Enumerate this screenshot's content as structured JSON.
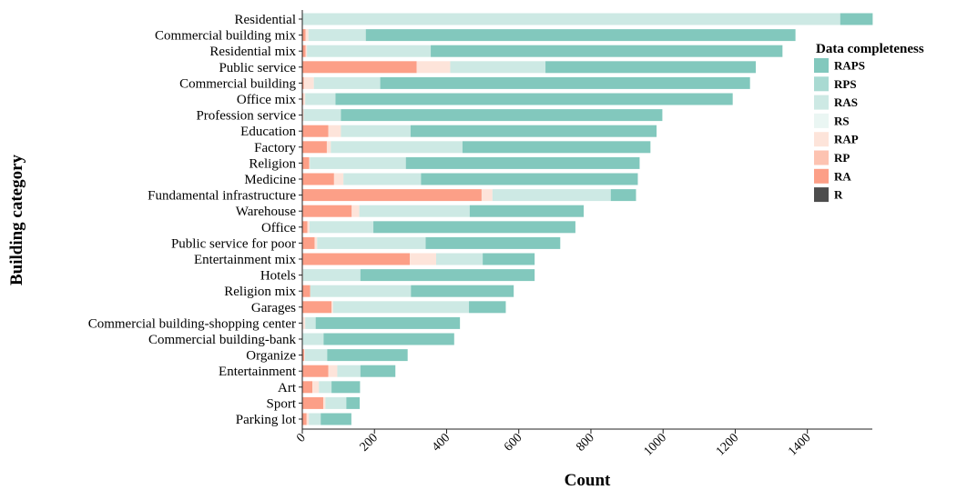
{
  "chart_data": {
    "type": "bar",
    "orientation": "horizontal",
    "stacked": true,
    "xlabel": "Count",
    "ylabel": "Building category",
    "xlim": [
      0,
      1580
    ],
    "xticks": [
      0,
      200,
      400,
      600,
      800,
      1000,
      1200,
      1400
    ],
    "grid": false,
    "legend": {
      "title": "Data completeness",
      "position": "right"
    },
    "categories": [
      "Residential",
      "Commercial building mix",
      "Residential mix",
      "Public service",
      "Commercial building",
      "Office mix",
      "Profession service",
      "Education",
      "Factory",
      "Religion",
      "Medicine",
      "Fundamental infrastructure",
      "Warehouse",
      "Office",
      "Public service for poor",
      "Entertainment mix",
      "Hotels",
      "Religion mix",
      "Garages",
      "Commercial building-shopping center",
      "Commercial building-bank",
      "Organize",
      "Entertainment",
      "Art",
      "Sport",
      "Parking lot"
    ],
    "series": [
      {
        "name": "R",
        "color": "#4d4d4d",
        "values": [
          0,
          0,
          0,
          0,
          0,
          0,
          0,
          0,
          0,
          0,
          0,
          0,
          0,
          0,
          0,
          0,
          0,
          0,
          0,
          0,
          0,
          0,
          0,
          0,
          0,
          0
        ]
      },
      {
        "name": "RA",
        "color": "#fc9f87",
        "values": [
          0,
          9,
          9,
          317,
          4,
          3,
          2,
          72,
          68,
          19,
          88,
          497,
          137,
          14,
          34,
          298,
          1,
          22,
          81,
          1,
          1,
          5,
          72,
          28,
          58,
          12
        ]
      },
      {
        "name": "RP",
        "color": "#fdc3b1",
        "values": [
          0,
          0,
          0,
          0,
          0,
          0,
          0,
          0,
          0,
          0,
          0,
          0,
          0,
          0,
          0,
          0,
          0,
          0,
          0,
          0,
          0,
          0,
          0,
          0,
          0,
          0
        ]
      },
      {
        "name": "RAP",
        "color": "#fde4da",
        "values": [
          0,
          8,
          4,
          93,
          28,
          5,
          2,
          35,
          11,
          2,
          26,
          30,
          21,
          6,
          7,
          73,
          1,
          0,
          4,
          7,
          0,
          2,
          25,
          18,
          6,
          6
        ]
      },
      {
        "name": "RS",
        "color": "#eaf6f3",
        "values": [
          0,
          0,
          0,
          0,
          0,
          0,
          0,
          0,
          0,
          0,
          0,
          0,
          0,
          0,
          0,
          0,
          0,
          0,
          0,
          0,
          0,
          0,
          0,
          0,
          0,
          0
        ]
      },
      {
        "name": "RAS",
        "color": "#cde9e4",
        "values": [
          1491,
          159,
          343,
          264,
          184,
          84,
          103,
          193,
          365,
          266,
          215,
          328,
          306,
          177,
          301,
          129,
          159,
          279,
          377,
          29,
          58,
          62,
          64,
          35,
          58,
          33
        ]
      },
      {
        "name": "RPS",
        "color": "#a9dad2",
        "values": [
          0,
          0,
          0,
          0,
          0,
          0,
          0,
          0,
          0,
          0,
          0,
          0,
          0,
          0,
          0,
          0,
          0,
          0,
          0,
          0,
          0,
          0,
          0,
          0,
          0,
          0
        ]
      },
      {
        "name": "RAPS",
        "color": "#82c8bd",
        "values": [
          90,
          1191,
          975,
          583,
          1025,
          1101,
          891,
          682,
          521,
          648,
          601,
          70,
          316,
          560,
          373,
          144,
          483,
          285,
          102,
          400,
          362,
          223,
          97,
          79,
          37,
          85
        ]
      }
    ]
  }
}
